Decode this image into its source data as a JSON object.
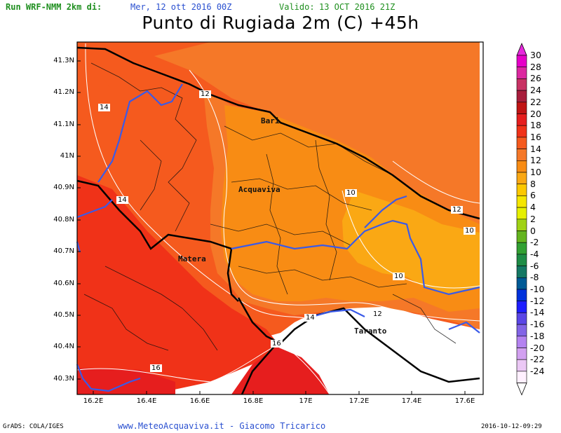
{
  "header": {
    "run_label": "Run WRF-NMM 2km di:",
    "run_date": "Mer, 12 ott 2016 00Z",
    "valid_label": "Valido:",
    "valid_date": "13 OCT 2016 21Z"
  },
  "title": "Punto di Rugiada 2m (C) +45h",
  "axes": {
    "latitude_labels": [
      "41.3N",
      "41.2N",
      "41.1N",
      "41N",
      "40.9N",
      "40.8N",
      "40.7N",
      "40.6N",
      "40.5N",
      "40.4N",
      "40.3N"
    ],
    "longitude_labels": [
      "16.2E",
      "16.4E",
      "16.6E",
      "16.8E",
      "17E",
      "17.2E",
      "17.4E",
      "17.6E"
    ]
  },
  "colorbar": {
    "labels": [
      "30",
      "28",
      "26",
      "24",
      "22",
      "20",
      "18",
      "16",
      "14",
      "12",
      "10",
      "8",
      "6",
      "4",
      "2",
      "0",
      "-2",
      "-4",
      "-6",
      "-8",
      "-10",
      "-12",
      "-14",
      "-16",
      "-18",
      "-20",
      "-22",
      "-24"
    ],
    "colors": [
      "#e600c8",
      "#dc28a0",
      "#c83264",
      "#a81e3c",
      "#c01414",
      "#e61e1e",
      "#f03218",
      "#f55a1e",
      "#f57828",
      "#f88c14",
      "#faa814",
      "#fcc800",
      "#f5e600",
      "#e6f000",
      "#a0d214",
      "#64b41e",
      "#32a032",
      "#1e8c46",
      "#147864",
      "#005a96",
      "#0032dc",
      "#1e1eff",
      "#5a46e6",
      "#8264e6",
      "#b482f0",
      "#d2a0f0",
      "#ebc8f5",
      "#fff0ff"
    ],
    "top_arrow_color": "#e628dc",
    "bottom_arrow_color": "#ffffff"
  },
  "cities": [
    "Bari",
    "Acquaviva",
    "Matera",
    "Taranto"
  ],
  "contour_labels": [
    "12",
    "14",
    "14",
    "10",
    "12",
    "10",
    "10",
    "12",
    "14",
    "16",
    "16"
  ],
  "footer": {
    "grads": "GrADS: COLA/IGES",
    "site": "www.MeteoAcquaviva.it - Giacomo Tricarico",
    "timestamp": "2016-10-12-09:29"
  }
}
